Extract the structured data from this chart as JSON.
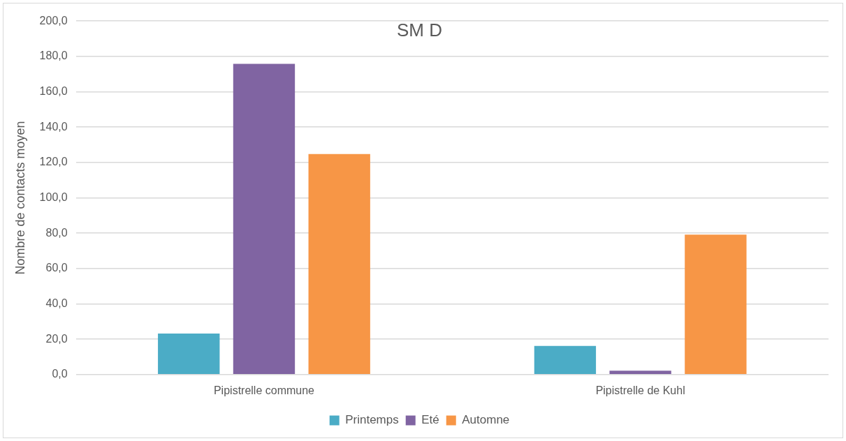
{
  "chart_data": {
    "type": "bar",
    "title": "SM D",
    "ylabel": "Nombre de contacts moyen",
    "categories": [
      "Pipistrelle commune",
      "Pipistrelle de Kuhl"
    ],
    "series": [
      {
        "name": "Printemps",
        "color": "#4bacc6",
        "values": [
          23.2,
          16.2
        ]
      },
      {
        "name": "Eté",
        "color": "#8064a2",
        "values": [
          175.8,
          2.2
        ]
      },
      {
        "name": "Automne",
        "color": "#f79646",
        "values": [
          124.8,
          79.2
        ]
      }
    ],
    "ylim": [
      0,
      200
    ],
    "yticks": [
      {
        "value": 0,
        "label": "0,0"
      },
      {
        "value": 20,
        "label": "20,0"
      },
      {
        "value": 40,
        "label": "40,0"
      },
      {
        "value": 60,
        "label": "60,0"
      },
      {
        "value": 80,
        "label": "80,0"
      },
      {
        "value": 100,
        "label": "100,0"
      },
      {
        "value": 120,
        "label": "120,0"
      },
      {
        "value": 140,
        "label": "140,0"
      },
      {
        "value": 160,
        "label": "160,0"
      },
      {
        "value": 180,
        "label": "180,0"
      },
      {
        "value": 200,
        "label": "200,0"
      }
    ],
    "grid": "y",
    "legend": "bottom"
  }
}
